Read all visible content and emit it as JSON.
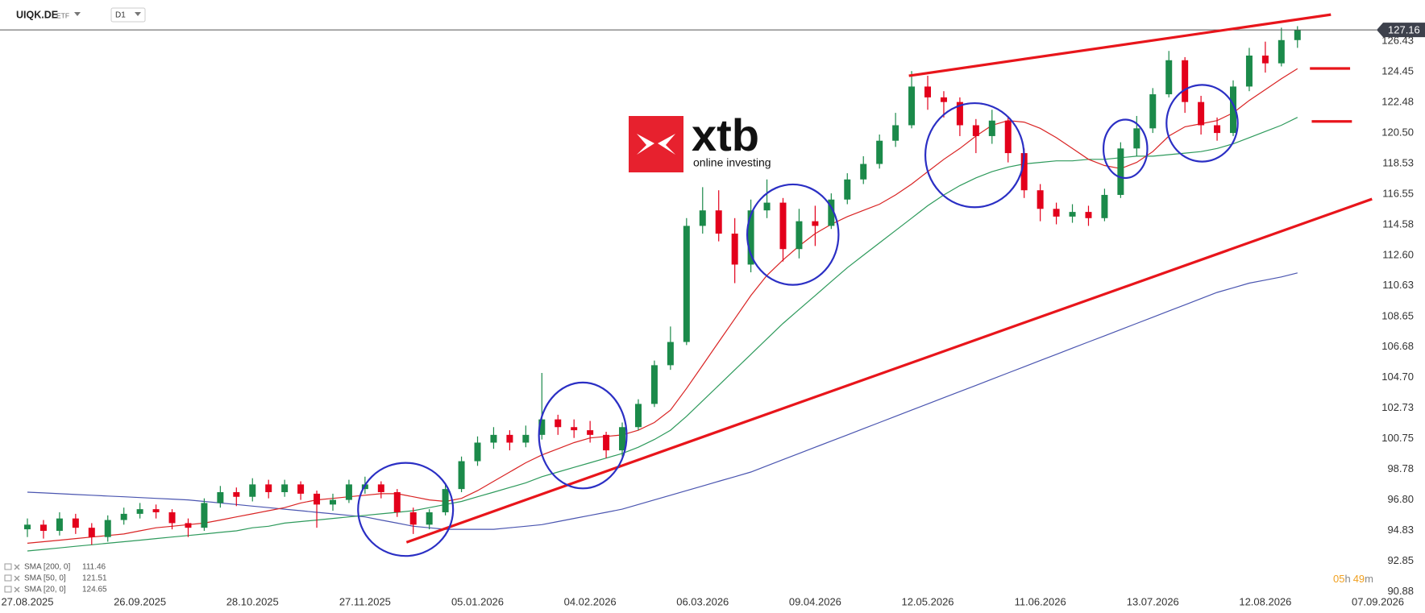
{
  "header": {
    "symbol": "UIQK.DE",
    "asset_class": "ETF",
    "timeframe": "D1"
  },
  "logo": {
    "brand": "xtb",
    "tagline": "online investing"
  },
  "countdown": [
    "05",
    "h",
    "49",
    "m"
  ],
  "chart_data": {
    "type": "candlestick",
    "categories": [
      "27.08.2025",
      null,
      null,
      null,
      null,
      null,
      null,
      "26.09.2025",
      null,
      null,
      null,
      null,
      null,
      null,
      "28.10.2025",
      null,
      null,
      null,
      null,
      null,
      null,
      "27.11.2025",
      null,
      null,
      null,
      null,
      null,
      null,
      "05.01.2026",
      null,
      null,
      null,
      null,
      null,
      null,
      "04.02.2026",
      null,
      null,
      null,
      null,
      null,
      null,
      "06.03.2026",
      null,
      null,
      null,
      null,
      null,
      null,
      "09.04.2026",
      null,
      null,
      null,
      null,
      null,
      null,
      "12.05.2026",
      null,
      null,
      null,
      null,
      null,
      null,
      "11.06.2026",
      null,
      null,
      null,
      null,
      null,
      null,
      "13.07.2026",
      null,
      null,
      null,
      null,
      null,
      null,
      "12.08.2026",
      null,
      null,
      null,
      null,
      null,
      null,
      "07.09.2026"
    ],
    "open": [
      94.9,
      95.2,
      94.8,
      95.6,
      95.0,
      94.4,
      95.5,
      95.9,
      96.2,
      96.0,
      95.3,
      95.0,
      96.6,
      97.3,
      97.0,
      97.8,
      97.3,
      97.8,
      97.2,
      96.5,
      96.8,
      97.5,
      97.8,
      97.3,
      96.0,
      95.2,
      96.0,
      97.5,
      99.3,
      100.5,
      101.0,
      100.5,
      101.0,
      102.0,
      101.5,
      101.3,
      101.0,
      100.0,
      101.5,
      103.0,
      105.5,
      107.0,
      114.5,
      115.5,
      114.0,
      112.0,
      115.5,
      116.0,
      113.0,
      114.8,
      114.5,
      116.2,
      117.5,
      118.5,
      120.0,
      121.0,
      123.5,
      122.8,
      122.5,
      121.0,
      120.3,
      121.3,
      119.2,
      116.8,
      115.6,
      115.1,
      115.4,
      115.0,
      116.5,
      119.5,
      120.8,
      123.0,
      125.2,
      122.5,
      121.0,
      120.5,
      123.5,
      125.5,
      125.0,
      126.5,
      null,
      null,
      null,
      null,
      null
    ],
    "high": [
      95.6,
      95.5,
      96.0,
      95.9,
      95.3,
      95.8,
      96.3,
      96.6,
      96.5,
      96.2,
      95.6,
      96.9,
      97.7,
      97.6,
      98.2,
      98.1,
      98.1,
      98.0,
      97.4,
      97.2,
      98.1,
      98.3,
      98.0,
      97.5,
      96.3,
      96.2,
      97.8,
      99.6,
      100.9,
      101.5,
      101.3,
      101.6,
      105.0,
      102.3,
      102.0,
      101.9,
      101.2,
      101.8,
      103.3,
      105.8,
      108.0,
      115.0,
      117.0,
      116.8,
      115.0,
      116.2,
      117.5,
      116.3,
      115.6,
      115.8,
      116.6,
      117.9,
      119.0,
      120.4,
      121.8,
      124.5,
      124.2,
      123.2,
      122.8,
      121.4,
      122.0,
      121.6,
      119.5,
      117.2,
      116.0,
      115.9,
      115.8,
      116.9,
      119.9,
      121.6,
      123.4,
      125.8,
      125.4,
      122.9,
      121.5,
      123.9,
      126.0,
      126.4,
      127.3,
      127.4,
      null,
      null,
      null,
      null,
      null
    ],
    "low": [
      94.4,
      94.3,
      94.5,
      94.6,
      93.9,
      94.1,
      95.2,
      95.6,
      95.6,
      94.9,
      94.4,
      94.8,
      96.3,
      96.4,
      96.7,
      96.9,
      97.0,
      96.8,
      95.0,
      96.1,
      96.6,
      97.2,
      96.9,
      95.7,
      94.6,
      94.9,
      95.8,
      97.3,
      99.0,
      100.1,
      100.0,
      100.2,
      100.7,
      101.0,
      100.8,
      100.5,
      99.5,
      99.6,
      101.3,
      102.8,
      105.2,
      106.8,
      114.0,
      113.5,
      110.8,
      111.5,
      115.0,
      112.2,
      112.4,
      113.2,
      114.3,
      115.9,
      117.2,
      118.2,
      119.6,
      120.8,
      122.0,
      121.5,
      120.3,
      119.2,
      119.8,
      118.6,
      116.3,
      114.8,
      114.6,
      114.7,
      114.5,
      114.8,
      116.3,
      119.0,
      120.5,
      122.8,
      121.8,
      120.4,
      120.0,
      120.3,
      123.2,
      124.4,
      124.8,
      126.0,
      null,
      null,
      null,
      null,
      null
    ],
    "close": [
      95.2,
      94.8,
      95.6,
      95.0,
      94.4,
      95.5,
      95.9,
      96.2,
      96.0,
      95.3,
      95.0,
      96.6,
      97.3,
      97.0,
      97.8,
      97.3,
      97.8,
      97.2,
      96.5,
      96.8,
      97.8,
      97.8,
      97.3,
      96.0,
      95.2,
      96.0,
      97.5,
      99.3,
      100.5,
      101.0,
      100.5,
      101.0,
      102.0,
      101.5,
      101.3,
      101.0,
      100.0,
      101.5,
      103.0,
      105.5,
      107.0,
      114.5,
      115.5,
      114.0,
      112.0,
      115.5,
      116.0,
      113.0,
      114.8,
      114.5,
      116.2,
      117.5,
      118.5,
      120.0,
      121.0,
      123.5,
      122.8,
      122.5,
      121.0,
      120.3,
      121.3,
      119.2,
      116.8,
      115.6,
      115.1,
      115.4,
      115.0,
      116.5,
      119.5,
      120.8,
      123.0,
      125.2,
      122.5,
      121.0,
      120.5,
      123.5,
      125.5,
      125.0,
      126.5,
      127.16,
      null,
      null,
      null,
      null,
      null
    ],
    "up_color": "#1b8a4a",
    "down_color": "#e3001b",
    "series": [
      {
        "name": "SMA [200, 0]",
        "color": "#4a55b0",
        "values": [
          97.3,
          97.25,
          97.2,
          97.15,
          97.1,
          97.05,
          97.0,
          96.95,
          96.9,
          96.85,
          96.8,
          96.7,
          96.6,
          96.5,
          96.4,
          96.3,
          96.2,
          96.1,
          96.0,
          95.9,
          95.8,
          95.7,
          95.5,
          95.3,
          95.1,
          95.0,
          94.9,
          94.9,
          94.9,
          94.9,
          95.0,
          95.1,
          95.2,
          95.4,
          95.6,
          95.8,
          96.0,
          96.2,
          96.5,
          96.8,
          97.1,
          97.4,
          97.7,
          98.0,
          98.3,
          98.6,
          99.0,
          99.4,
          99.8,
          100.2,
          100.6,
          101.0,
          101.4,
          101.8,
          102.2,
          102.6,
          103.0,
          103.4,
          103.8,
          104.2,
          104.6,
          105.0,
          105.4,
          105.8,
          106.2,
          106.6,
          107.0,
          107.4,
          107.8,
          108.2,
          108.6,
          109.0,
          109.4,
          109.8,
          110.2,
          110.5,
          110.8,
          111.0,
          111.2,
          111.46,
          null,
          null,
          null,
          null,
          null
        ]
      },
      {
        "name": "SMA [50, 0]",
        "color": "#2e9a5c",
        "values": [
          93.5,
          93.6,
          93.7,
          93.8,
          93.9,
          94.0,
          94.1,
          94.2,
          94.3,
          94.4,
          94.5,
          94.6,
          94.7,
          94.8,
          95.0,
          95.1,
          95.3,
          95.4,
          95.5,
          95.6,
          95.7,
          95.8,
          95.9,
          96.0,
          96.1,
          96.3,
          96.5,
          96.7,
          97.0,
          97.3,
          97.6,
          97.9,
          98.3,
          98.6,
          98.9,
          99.2,
          99.5,
          99.8,
          100.2,
          100.7,
          101.3,
          102.2,
          103.2,
          104.2,
          105.2,
          106.2,
          107.2,
          108.2,
          109.1,
          110.0,
          110.9,
          111.8,
          112.6,
          113.4,
          114.2,
          115.0,
          115.8,
          116.5,
          117.1,
          117.6,
          118.0,
          118.3,
          118.5,
          118.6,
          118.7,
          118.7,
          118.8,
          118.8,
          118.9,
          119.0,
          119.0,
          119.1,
          119.2,
          119.3,
          119.5,
          119.8,
          120.2,
          120.6,
          121.0,
          121.51,
          null,
          null,
          null,
          null,
          null
        ]
      },
      {
        "name": "SMA [20, 0]",
        "color": "#d92323",
        "values": [
          94.0,
          94.1,
          94.2,
          94.3,
          94.4,
          94.5,
          94.6,
          94.8,
          95.0,
          95.1,
          95.2,
          95.3,
          95.5,
          95.7,
          95.9,
          96.1,
          96.3,
          96.6,
          96.8,
          96.9,
          97.0,
          97.1,
          97.2,
          97.2,
          97.0,
          96.8,
          96.7,
          96.9,
          97.4,
          98.0,
          98.6,
          99.2,
          99.7,
          100.1,
          100.5,
          100.8,
          100.9,
          101.0,
          101.3,
          101.8,
          102.6,
          104.0,
          105.5,
          107.0,
          108.5,
          110.0,
          111.3,
          112.3,
          113.2,
          114.0,
          114.6,
          115.1,
          115.5,
          115.9,
          116.5,
          117.2,
          118.0,
          118.8,
          119.5,
          120.3,
          121.0,
          121.3,
          121.2,
          120.8,
          120.2,
          119.5,
          118.8,
          118.4,
          118.2,
          118.6,
          119.3,
          120.3,
          120.9,
          121.1,
          121.3,
          121.8,
          122.6,
          123.3,
          124.0,
          124.65,
          null,
          null,
          null,
          null,
          null
        ]
      }
    ],
    "ylim": [
      90.76,
      129.09
    ],
    "yticks": [
      126.43,
      124.45,
      122.48,
      {
        "value": 120.5,
        "label": "120.50"
      },
      118.53,
      116.55,
      114.58,
      {
        "value": 112.6,
        "label": "112.60"
      },
      110.63,
      108.65,
      106.68,
      {
        "value": 104.7,
        "label": "104.70"
      },
      102.73,
      100.75,
      98.78,
      {
        "value": 96.8,
        "label": "96.80"
      },
      94.83,
      92.85,
      90.88
    ],
    "grid": false
  }
}
